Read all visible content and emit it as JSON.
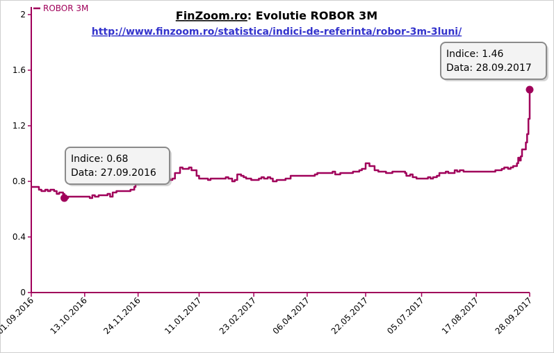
{
  "header": {
    "title_site": "FinZoom.ro",
    "title_rest": ": Evolutie ROBOR 3M",
    "url": " http://www.finzoom.ro/statistica/indici-de-referinta/robor-3m-3luni/"
  },
  "legend": {
    "label": "ROBOR 3M",
    "position": "top-left"
  },
  "colors": {
    "series": "#a0005a",
    "axis": "#a0005a",
    "tooltip_bg": "#f2f2f2",
    "tooltip_border": "#888888",
    "url": "#3333cc"
  },
  "tooltips": [
    {
      "line1": "Indice: 0.68",
      "line2": "Data: 27.09.2016"
    },
    {
      "line1": "Indice: 1.46",
      "line2": "Data: 28.09.2017"
    }
  ],
  "chart_data": {
    "type": "line",
    "title": "FinZoom.ro: Evolutie ROBOR 3M",
    "xlabel": "",
    "ylabel": "",
    "ylim": [
      0,
      2
    ],
    "yticks": [
      "0",
      "0.4",
      "0.8",
      "1.2",
      "1.6",
      "2"
    ],
    "x_range": [
      "2016-09-01",
      "2017-09-28"
    ],
    "xticks": [
      "01.09.2016",
      "13.10.2016",
      "24.11.2016",
      "11.01.2017",
      "23.02.2017",
      "06.04.2017",
      "22.05.2017",
      "05.07.2017",
      "17.08.2017",
      "28.09.2017"
    ],
    "grid": false,
    "series": [
      {
        "name": "ROBOR 3M",
        "points": [
          [
            "2016-09-01",
            0.76
          ],
          [
            "2016-09-05",
            0.76
          ],
          [
            "2016-09-07",
            0.74
          ],
          [
            "2016-09-09",
            0.73
          ],
          [
            "2016-09-12",
            0.74
          ],
          [
            "2016-09-14",
            0.73
          ],
          [
            "2016-09-16",
            0.74
          ],
          [
            "2016-09-19",
            0.73
          ],
          [
            "2016-09-21",
            0.71
          ],
          [
            "2016-09-23",
            0.72
          ],
          [
            "2016-09-26",
            0.71
          ],
          [
            "2016-09-27",
            0.68
          ],
          [
            "2016-09-30",
            0.69
          ],
          [
            "2016-10-05",
            0.69
          ],
          [
            "2016-10-10",
            0.69
          ],
          [
            "2016-10-14",
            0.69
          ],
          [
            "2016-10-17",
            0.68
          ],
          [
            "2016-10-19",
            0.7
          ],
          [
            "2016-10-21",
            0.69
          ],
          [
            "2016-10-24",
            0.7
          ],
          [
            "2016-10-28",
            0.7
          ],
          [
            "2016-10-31",
            0.71
          ],
          [
            "2016-11-02",
            0.69
          ],
          [
            "2016-11-04",
            0.72
          ],
          [
            "2016-11-07",
            0.73
          ],
          [
            "2016-11-11",
            0.73
          ],
          [
            "2016-11-16",
            0.73
          ],
          [
            "2016-11-18",
            0.74
          ],
          [
            "2016-11-21",
            0.76
          ],
          [
            "2016-11-22",
            0.78
          ],
          [
            "2016-11-25",
            0.79
          ],
          [
            "2016-11-28",
            0.8
          ],
          [
            "2016-12-01",
            0.8
          ],
          [
            "2016-12-05",
            0.81
          ],
          [
            "2016-12-09",
            0.82
          ],
          [
            "2016-12-12",
            0.83
          ],
          [
            "2016-12-15",
            0.82
          ],
          [
            "2016-12-19",
            0.81
          ],
          [
            "2016-12-21",
            0.82
          ],
          [
            "2016-12-23",
            0.86
          ],
          [
            "2016-12-27",
            0.9
          ],
          [
            "2016-12-29",
            0.89
          ],
          [
            "2017-01-03",
            0.9
          ],
          [
            "2017-01-05",
            0.88
          ],
          [
            "2017-01-09",
            0.84
          ],
          [
            "2017-01-11",
            0.82
          ],
          [
            "2017-01-13",
            0.82
          ],
          [
            "2017-01-16",
            0.82
          ],
          [
            "2017-01-18",
            0.81
          ],
          [
            "2017-01-20",
            0.82
          ],
          [
            "2017-01-24",
            0.82
          ],
          [
            "2017-01-27",
            0.82
          ],
          [
            "2017-01-30",
            0.82
          ],
          [
            "2017-02-01",
            0.83
          ],
          [
            "2017-02-03",
            0.82
          ],
          [
            "2017-02-06",
            0.8
          ],
          [
            "2017-02-08",
            0.81
          ],
          [
            "2017-02-10",
            0.85
          ],
          [
            "2017-02-13",
            0.84
          ],
          [
            "2017-02-15",
            0.83
          ],
          [
            "2017-02-17",
            0.82
          ],
          [
            "2017-02-21",
            0.81
          ],
          [
            "2017-02-24",
            0.81
          ],
          [
            "2017-02-27",
            0.82
          ],
          [
            "2017-03-01",
            0.83
          ],
          [
            "2017-03-03",
            0.82
          ],
          [
            "2017-03-06",
            0.83
          ],
          [
            "2017-03-08",
            0.82
          ],
          [
            "2017-03-10",
            0.8
          ],
          [
            "2017-03-13",
            0.81
          ],
          [
            "2017-03-16",
            0.81
          ],
          [
            "2017-03-20",
            0.82
          ],
          [
            "2017-03-22",
            0.82
          ],
          [
            "2017-03-24",
            0.84
          ],
          [
            "2017-03-28",
            0.84
          ],
          [
            "2017-04-03",
            0.84
          ],
          [
            "2017-04-06",
            0.84
          ],
          [
            "2017-04-10",
            0.84
          ],
          [
            "2017-04-12",
            0.85
          ],
          [
            "2017-04-14",
            0.86
          ],
          [
            "2017-04-19",
            0.86
          ],
          [
            "2017-04-24",
            0.86
          ],
          [
            "2017-04-26",
            0.87
          ],
          [
            "2017-04-28",
            0.85
          ],
          [
            "2017-05-02",
            0.86
          ],
          [
            "2017-05-08",
            0.86
          ],
          [
            "2017-05-12",
            0.87
          ],
          [
            "2017-05-15",
            0.87
          ],
          [
            "2017-05-17",
            0.88
          ],
          [
            "2017-05-19",
            0.89
          ],
          [
            "2017-05-22",
            0.93
          ],
          [
            "2017-05-25",
            0.91
          ],
          [
            "2017-05-29",
            0.88
          ],
          [
            "2017-06-01",
            0.87
          ],
          [
            "2017-06-05",
            0.87
          ],
          [
            "2017-06-07",
            0.86
          ],
          [
            "2017-06-09",
            0.86
          ],
          [
            "2017-06-12",
            0.87
          ],
          [
            "2017-06-16",
            0.87
          ],
          [
            "2017-06-20",
            0.87
          ],
          [
            "2017-06-22",
            0.86
          ],
          [
            "2017-06-23",
            0.84
          ],
          [
            "2017-06-26",
            0.85
          ],
          [
            "2017-06-28",
            0.83
          ],
          [
            "2017-07-01",
            0.82
          ],
          [
            "2017-07-05",
            0.82
          ],
          [
            "2017-07-07",
            0.82
          ],
          [
            "2017-07-10",
            0.83
          ],
          [
            "2017-07-12",
            0.82
          ],
          [
            "2017-07-14",
            0.83
          ],
          [
            "2017-07-17",
            0.84
          ],
          [
            "2017-07-19",
            0.86
          ],
          [
            "2017-07-21",
            0.86
          ],
          [
            "2017-07-24",
            0.87
          ],
          [
            "2017-07-26",
            0.86
          ],
          [
            "2017-07-28",
            0.86
          ],
          [
            "2017-07-31",
            0.88
          ],
          [
            "2017-08-02",
            0.87
          ],
          [
            "2017-08-04",
            0.88
          ],
          [
            "2017-08-07",
            0.87
          ],
          [
            "2017-08-11",
            0.87
          ],
          [
            "2017-08-15",
            0.87
          ],
          [
            "2017-08-18",
            0.87
          ],
          [
            "2017-08-22",
            0.87
          ],
          [
            "2017-08-24",
            0.87
          ],
          [
            "2017-08-29",
            0.87
          ],
          [
            "2017-08-31",
            0.87
          ],
          [
            "2017-09-01",
            0.88
          ],
          [
            "2017-09-04",
            0.88
          ],
          [
            "2017-09-06",
            0.89
          ],
          [
            "2017-09-08",
            0.9
          ],
          [
            "2017-09-11",
            0.89
          ],
          [
            "2017-09-13",
            0.9
          ],
          [
            "2017-09-15",
            0.91
          ],
          [
            "2017-09-18",
            0.93
          ],
          [
            "2017-09-19",
            0.97
          ],
          [
            "2017-09-20",
            0.95
          ],
          [
            "2017-09-21",
            0.98
          ],
          [
            "2017-09-22",
            1.03
          ],
          [
            "2017-09-25",
            1.08
          ],
          [
            "2017-09-26",
            1.14
          ],
          [
            "2017-09-27",
            1.25
          ],
          [
            "2017-09-28",
            1.46
          ]
        ]
      }
    ]
  }
}
